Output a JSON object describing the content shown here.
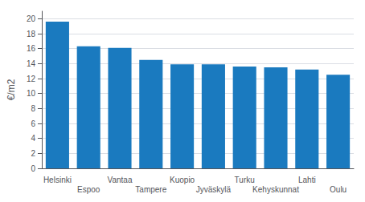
{
  "chart_data": {
    "type": "bar",
    "ylabel": "€/m2",
    "categories": [
      "Helsinki",
      "Espoo",
      "Vantaa",
      "Tampere",
      "Kuopio",
      "Jyväskylä",
      "Turku",
      "Kehyskunnat",
      "Lahti",
      "Oulu"
    ],
    "values": [
      19.6,
      16.3,
      16.1,
      14.5,
      13.9,
      13.9,
      13.6,
      13.5,
      13.2,
      12.5
    ],
    "color": "#1a7abf",
    "ylim": [
      0,
      21
    ],
    "yticks": [
      0,
      2,
      4,
      6,
      8,
      10,
      12,
      14,
      16,
      18,
      20
    ],
    "grid": true
  }
}
